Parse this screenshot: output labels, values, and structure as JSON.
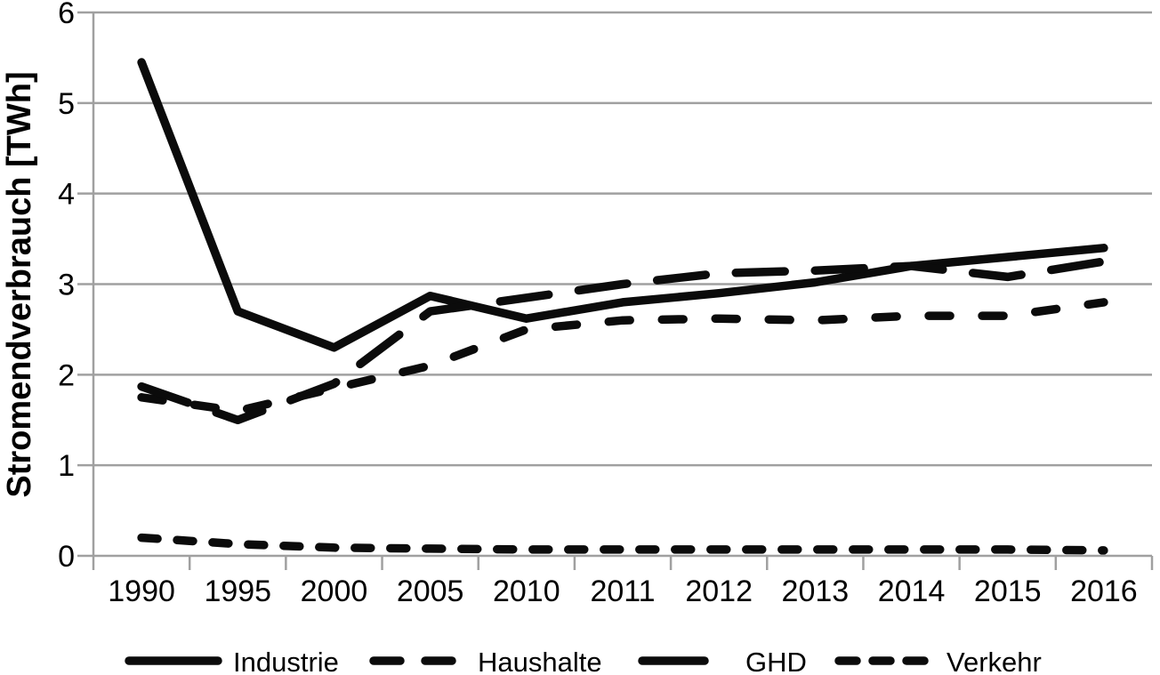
{
  "figure": {
    "background_color": "#ffffff",
    "line_color": "#0b0b0b",
    "grid_color": "#a0a0a0",
    "text_color": "#000000"
  },
  "chart_data": {
    "type": "line",
    "title": "",
    "xlabel": "",
    "ylabel": "Stromendverbrauch [TWh]",
    "ylim": [
      0,
      6
    ],
    "yticks": [
      0,
      1,
      2,
      3,
      4,
      5,
      6
    ],
    "ytick_labels": [
      "0",
      "1",
      "2",
      "3",
      "4",
      "5",
      "6"
    ],
    "grid": "horizontal",
    "legend_position": "bottom",
    "categories": [
      "1990",
      "1995",
      "2000",
      "2005",
      "2010",
      "2011",
      "2012",
      "2013",
      "2014",
      "2015",
      "2016"
    ],
    "series": [
      {
        "name": "Industrie",
        "dash": "solid",
        "values": [
          5.45,
          2.7,
          2.3,
          2.87,
          2.62,
          2.8,
          2.9,
          3.02,
          3.2,
          3.3,
          3.4
        ]
      },
      {
        "name": "Haushalte",
        "dash": "medium-dash",
        "values": [
          1.75,
          1.6,
          1.85,
          2.1,
          2.5,
          2.6,
          2.62,
          2.6,
          2.65,
          2.65,
          2.8
        ]
      },
      {
        "name": "GHD",
        "dash": "long-dash",
        "values": [
          1.87,
          1.5,
          1.9,
          2.7,
          2.85,
          3.0,
          3.12,
          3.15,
          3.2,
          3.08,
          3.25
        ]
      },
      {
        "name": "Verkehr",
        "dash": "short-dash",
        "values": [
          0.2,
          0.13,
          0.09,
          0.08,
          0.07,
          0.07,
          0.07,
          0.07,
          0.07,
          0.07,
          0.06
        ]
      }
    ]
  }
}
